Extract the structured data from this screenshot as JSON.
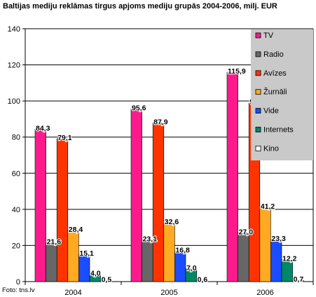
{
  "chart_data": {
    "type": "bar",
    "title": "Baltijas mediju reklāmas tirgus apjoms mediju grupās 2004-2006, milj. EUR",
    "xlabel": "",
    "ylabel": "",
    "categories": [
      "2004",
      "2005",
      "2006"
    ],
    "ylim": [
      0,
      140
    ],
    "yticks": [
      0,
      20,
      40,
      60,
      80,
      100,
      120,
      140
    ],
    "grid": true,
    "legend_position": "right",
    "series": [
      {
        "name": "TV",
        "color": "#ff1a8c",
        "values": [
          84.3,
          95.6,
          115.9
        ],
        "labels": [
          "84,3",
          "95,6",
          "115,9"
        ]
      },
      {
        "name": "Radio",
        "color": "#666666",
        "values": [
          21.6,
          23.1,
          27.0
        ],
        "labels": [
          "21,6",
          "23,1",
          "27,0"
        ]
      },
      {
        "name": "Avīzes",
        "color": "#ff3300",
        "values": [
          79.1,
          87.9,
          99.0
        ],
        "labels": [
          "79,1",
          "87,9",
          "99,0"
        ]
      },
      {
        "name": "Žurnāli",
        "color": "#ffaa22",
        "values": [
          28.4,
          32.6,
          41.2
        ],
        "labels": [
          "28,4",
          "32,6",
          "41,2"
        ]
      },
      {
        "name": "Vide",
        "color": "#1a4dff",
        "values": [
          15.1,
          16.8,
          23.3
        ],
        "labels": [
          "15,1",
          "16,8",
          "23,3"
        ]
      },
      {
        "name": "Internets",
        "color": "#008866",
        "values": [
          4.0,
          7.0,
          12.2
        ],
        "labels": [
          "4,0",
          "7,0",
          "12,2"
        ]
      },
      {
        "name": "Kino",
        "color": "#ffffff",
        "values": [
          0.5,
          0.6,
          0.7
        ],
        "labels": [
          "0,5",
          "0,6",
          "0,7"
        ]
      }
    ]
  },
  "source": "Foto: tns.lv"
}
